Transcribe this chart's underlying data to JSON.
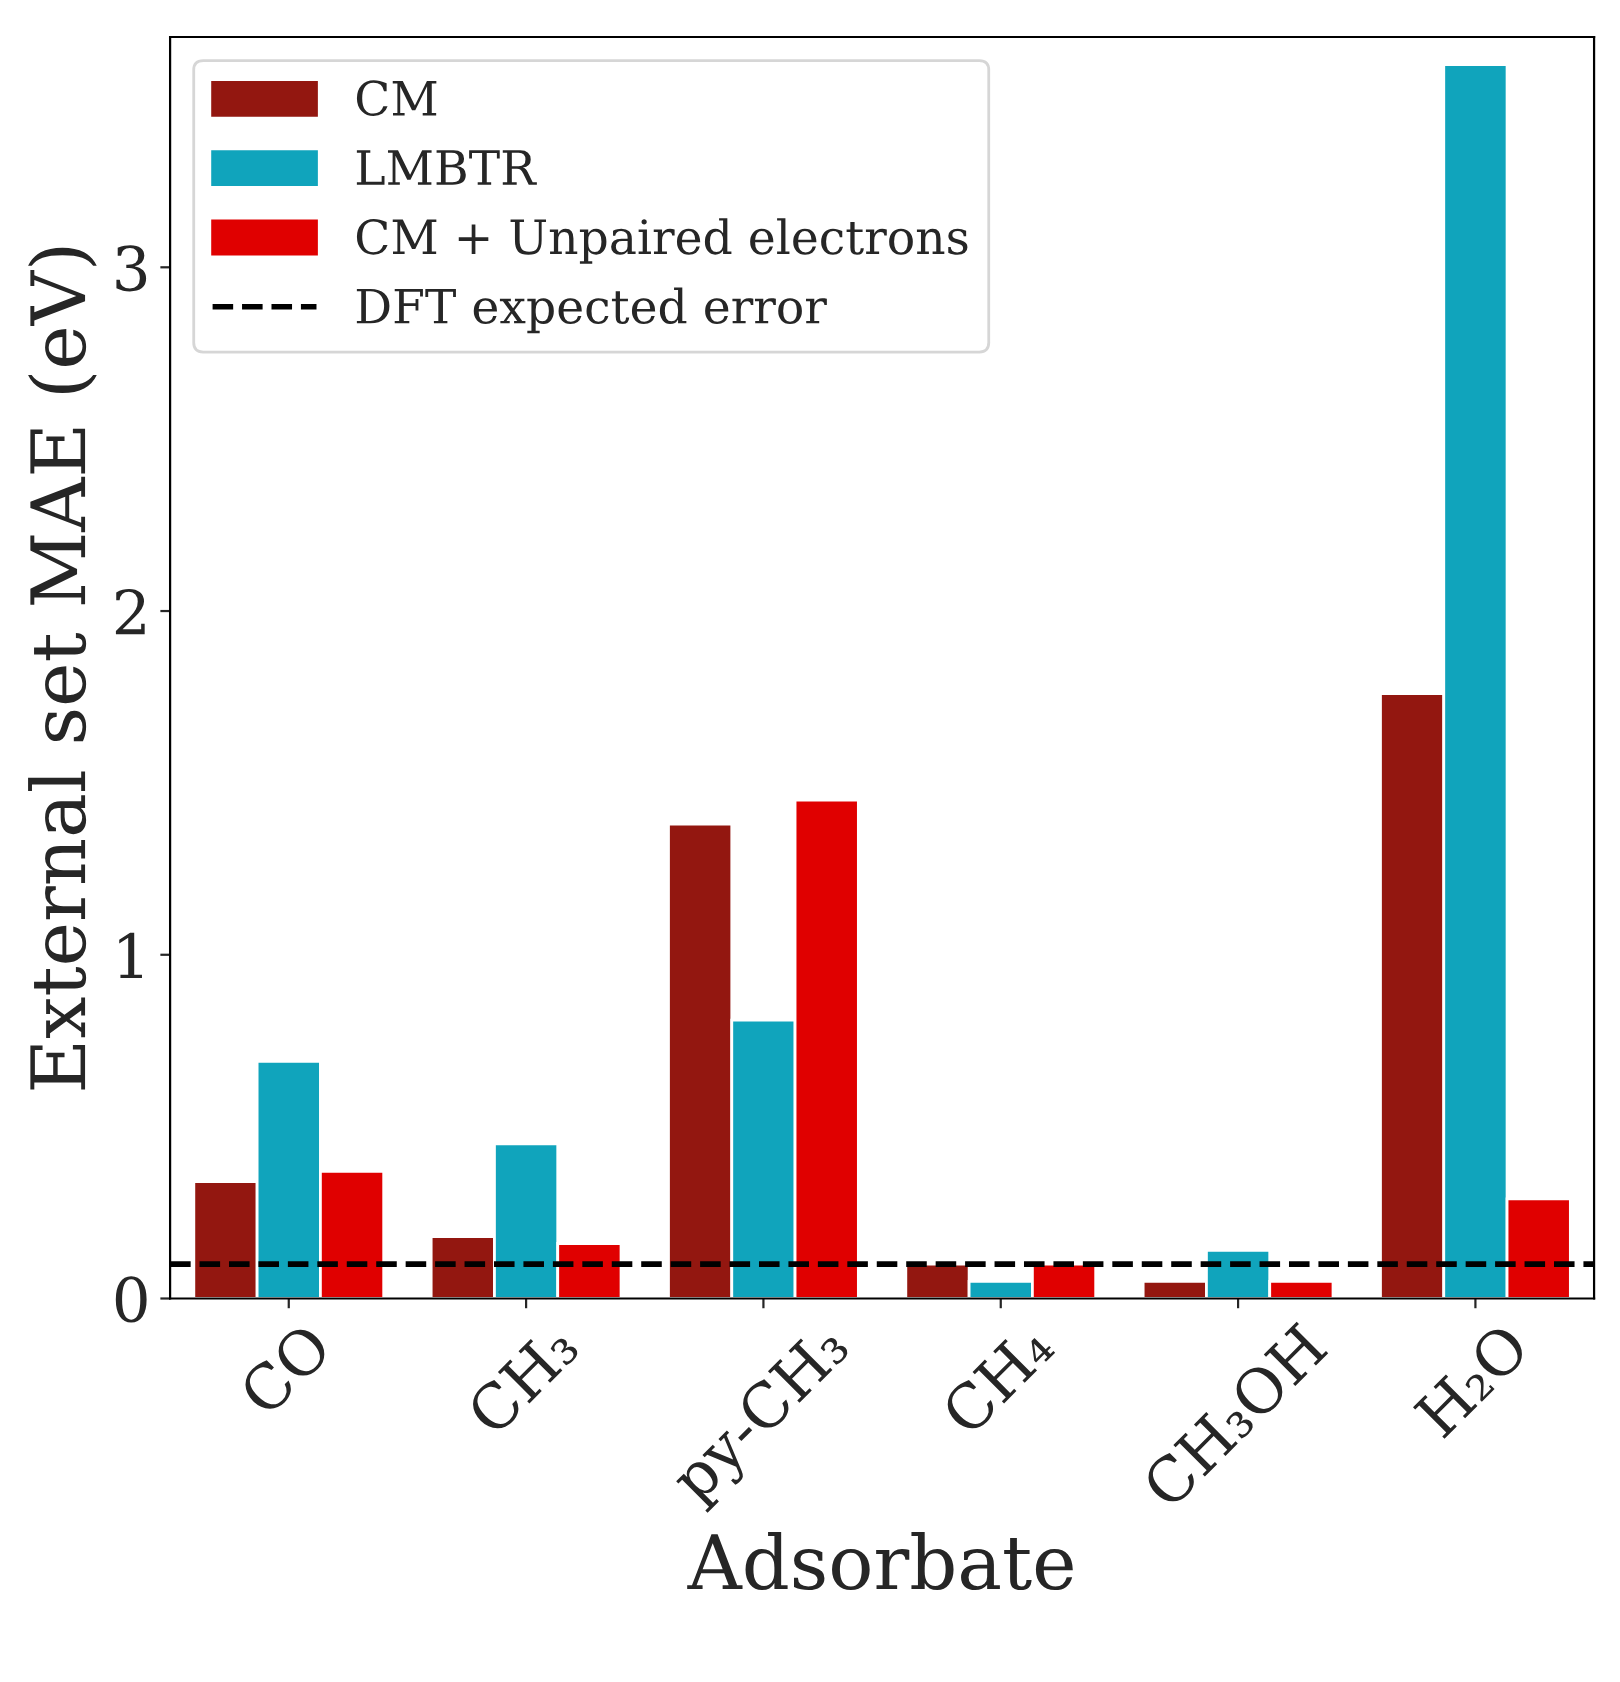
{
  "chart_data": {
    "type": "bar",
    "xlabel": "Adsorbate",
    "ylabel": "External set MAE (eV)",
    "categories": [
      "CO",
      "CH₃",
      "py-CH₃",
      "CH₄",
      "CH₃OH",
      "H₂O"
    ],
    "series": [
      {
        "name": "CM",
        "color": "#931710",
        "values": [
          0.34,
          0.18,
          1.38,
          0.1,
          0.05,
          1.76
        ]
      },
      {
        "name": "LMBTR",
        "color": "#10a4bc",
        "values": [
          0.69,
          0.45,
          0.81,
          0.05,
          0.14,
          3.59
        ]
      },
      {
        "name": "CM + Unpaired electrons",
        "color": "#e00000",
        "values": [
          0.37,
          0.16,
          1.45,
          0.1,
          0.05,
          0.29
        ]
      }
    ],
    "ref_lines": [
      {
        "axis": "y",
        "value": 0.1,
        "label": "DFT expected error",
        "color": "#000000",
        "line_style": "dashed"
      }
    ],
    "ylim": [
      0,
      3.67
    ],
    "yticks": [
      0,
      1,
      2,
      3
    ],
    "grid": false,
    "legend": "top left"
  }
}
